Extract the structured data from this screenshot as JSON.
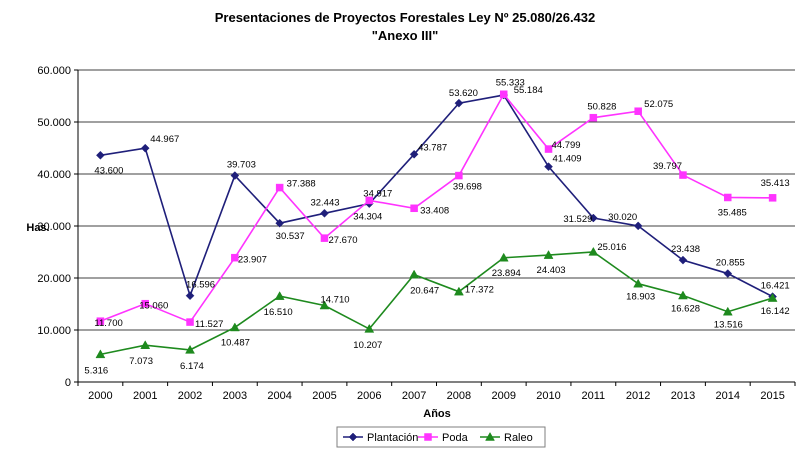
{
  "chart_data": {
    "type": "line",
    "title": "Presentaciones de Proyectos Forestales Ley Nº 25.080/26.432",
    "subtitle": "\"Anexo III\"",
    "xlabel": "Años",
    "ylabel": "Has.",
    "categories": [
      "2000",
      "2001",
      "2002",
      "2003",
      "2004",
      "2005",
      "2006",
      "2007",
      "2008",
      "2009",
      "2010",
      "2011",
      "2012",
      "2013",
      "2014",
      "2015"
    ],
    "ylim": [
      0,
      60000
    ],
    "yticks": [
      0,
      10000,
      20000,
      30000,
      40000,
      50000,
      60000
    ],
    "ytick_labels": [
      "0",
      "10.000",
      "20.000",
      "30.000",
      "40.000",
      "50.000",
      "60.000"
    ],
    "grid": true,
    "legend_position": "bottom",
    "series": [
      {
        "name": "Plantación",
        "color": "#1f1f7a",
        "marker": "diamond",
        "values": [
          43600,
          44967,
          16596,
          39703,
          30537,
          32443,
          34304,
          43787,
          53620,
          55184,
          41409,
          31529,
          30020,
          23438,
          20855,
          16421
        ],
        "labels": [
          "43.600",
          "44.967",
          "16.596",
          "39.703",
          "30.537",
          "32.443",
          "34.304",
          "43.787",
          "53.620",
          "55.184",
          "41.409",
          "31.529",
          "30.020",
          "23.438",
          "20.855",
          "16.421"
        ]
      },
      {
        "name": "Poda",
        "color": "#ff33ff",
        "marker": "square",
        "values": [
          11700,
          15060,
          11527,
          23907,
          37388,
          27670,
          34917,
          33408,
          39698,
          55333,
          44799,
          50828,
          52075,
          39797,
          35485,
          35413
        ],
        "labels": [
          "11.700",
          "15.060",
          "11.527",
          "23.907",
          "37.388",
          "27.670",
          "34.917",
          "33.408",
          "39.698",
          "55.333",
          "44.799",
          "50.828",
          "52.075",
          "39.797",
          "35.485",
          "35.413"
        ]
      },
      {
        "name": "Raleo",
        "color": "#1e8a1e",
        "marker": "triangle",
        "values": [
          5316,
          7073,
          6174,
          10487,
          16510,
          14710,
          10207,
          20647,
          17372,
          23894,
          24403,
          25016,
          18903,
          16628,
          13516,
          16142
        ],
        "labels": [
          "5.316",
          "7.073",
          "6.174",
          "10.487",
          "16.510",
          "14.710",
          "10.207",
          "20.647",
          "17.372",
          "23.894",
          "24.403",
          "25.016",
          "18.903",
          "16.628",
          "13.516",
          "16.142"
        ]
      }
    ]
  }
}
